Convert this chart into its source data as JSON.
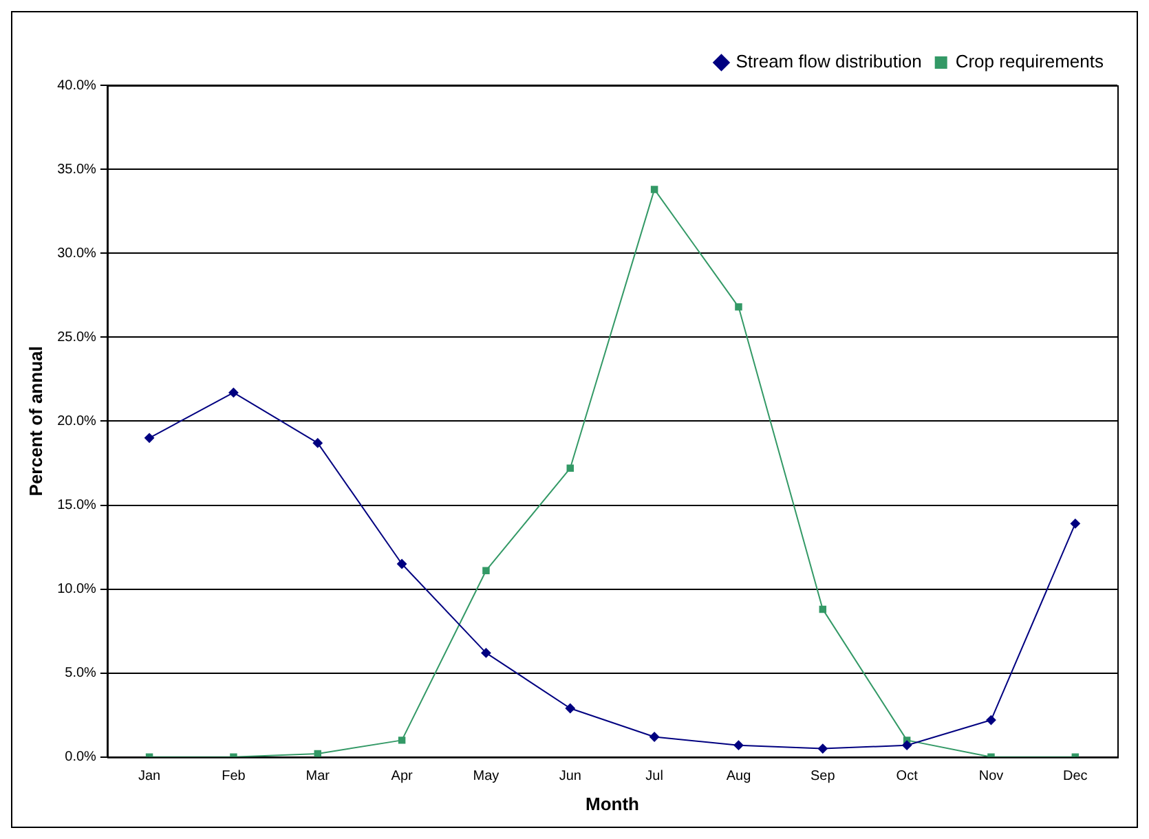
{
  "chart_data": {
    "type": "line",
    "xlabel": "Month",
    "ylabel": "Percent of annual",
    "categories": [
      "Jan",
      "Feb",
      "Mar",
      "Apr",
      "May",
      "Jun",
      "Jul",
      "Aug",
      "Sep",
      "Oct",
      "Nov",
      "Dec"
    ],
    "series": [
      {
        "name": "Stream flow distribution",
        "color": "#000080",
        "marker": "diamond",
        "values": [
          19.0,
          21.7,
          18.7,
          11.5,
          6.2,
          2.9,
          1.2,
          0.7,
          0.5,
          0.7,
          2.2,
          13.9
        ]
      },
      {
        "name": "Crop requirements",
        "color": "#339966",
        "marker": "square",
        "values": [
          0,
          0,
          0.2,
          1.0,
          11.1,
          17.2,
          33.8,
          26.8,
          8.8,
          1.0,
          0,
          0
        ]
      }
    ],
    "ylim": [
      0,
      40
    ],
    "yticks": [
      {
        "value": 0,
        "label": "0.0%"
      },
      {
        "value": 5,
        "label": "5.0%"
      },
      {
        "value": 10,
        "label": "10.0%"
      },
      {
        "value": 15,
        "label": "15.0%"
      },
      {
        "value": 20,
        "label": "20.0%"
      },
      {
        "value": 25,
        "label": "25.0%"
      },
      {
        "value": 30,
        "label": "30.0%"
      },
      {
        "value": 35,
        "label": "35.0%"
      },
      {
        "value": 40,
        "label": "40.0%"
      }
    ],
    "grid": "y",
    "legend": "top right",
    "line_style": "solid"
  }
}
